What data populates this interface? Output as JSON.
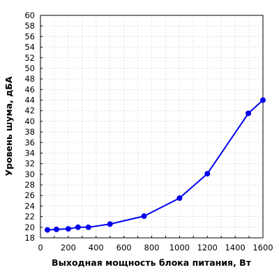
{
  "chart_data": {
    "type": "line",
    "title": "",
    "xlabel": "Выходная мощность блока питания, Вт",
    "ylabel": "Уровень шума, дБА",
    "xlim": [
      0,
      1600
    ],
    "ylim": [
      18,
      60
    ],
    "xticks": [
      0,
      200,
      400,
      600,
      800,
      1000,
      1200,
      1400,
      1600
    ],
    "yticks": [
      18,
      20,
      22,
      24,
      26,
      28,
      30,
      32,
      34,
      36,
      38,
      40,
      42,
      44,
      46,
      48,
      50,
      52,
      54,
      56,
      58,
      60
    ],
    "x_minor_step": 100,
    "grid": true,
    "legend": "none",
    "series": [
      {
        "color": "#0000ee",
        "points": [
          {
            "x": 50,
            "y": 19.5
          },
          {
            "x": 115,
            "y": 19.6
          },
          {
            "x": 200,
            "y": 19.7
          },
          {
            "x": 270,
            "y": 20.0
          },
          {
            "x": 345,
            "y": 20.0
          },
          {
            "x": 500,
            "y": 20.6
          },
          {
            "x": 745,
            "y": 22.1
          },
          {
            "x": 1000,
            "y": 25.5
          },
          {
            "x": 1200,
            "y": 30.1
          },
          {
            "x": 1495,
            "y": 41.5
          },
          {
            "x": 1600,
            "y": 44.0
          }
        ]
      }
    ]
  }
}
